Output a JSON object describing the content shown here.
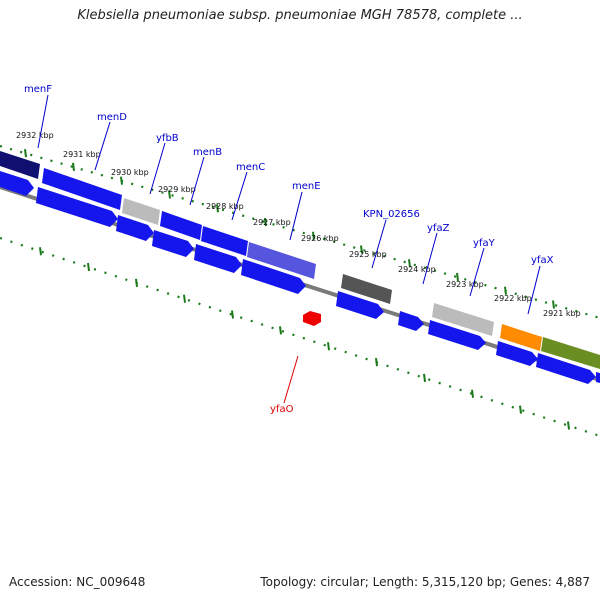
{
  "title": "Klebsiella pneumoniae subsp. pneumoniae MGH 78578, complete ...",
  "footer": {
    "accession": "Accession: NC_009648",
    "summary": "Topology: circular; Length: 5,315,120 bp; Genes: 4,887"
  },
  "colors": {
    "forward_gene": "#1515ee",
    "reverse_gene": "#1010d8",
    "highlight_gene": "#ee0000",
    "grey_gene": "#bbbbbb",
    "dark_gene": "#555555",
    "orange_gene": "#ff8c00",
    "olive_gene": "#6b8e23",
    "tick_major": "#1a7a1a",
    "label_line_blue": "#0000cc",
    "label_line_red": "#dd0000"
  },
  "kbp_ticks": [
    "2932 kbp",
    "2931 kbp",
    "2930 kbp",
    "2929 kbp",
    "2928 kbp",
    "2927 kbp",
    "2926 kbp",
    "2925 kbp",
    "2924 kbp",
    "2923 kbp",
    "2922 kbp",
    "2921 kbp"
  ],
  "gene_labels": [
    "menF",
    "menD",
    "yfbB",
    "menB",
    "menC",
    "menE",
    "KPN_02656",
    "yfaZ",
    "yfaY",
    "yfaX",
    "yfaO"
  ]
}
